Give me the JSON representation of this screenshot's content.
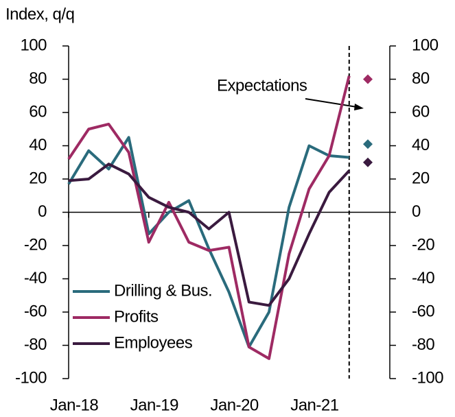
{
  "chart_data": {
    "type": "line",
    "axis_label": "Index, q/q",
    "annotation": "Expectations",
    "categories": [
      "Jan-18",
      null,
      null,
      null,
      "Jan-19",
      null,
      null,
      null,
      "Jan-20",
      null,
      null,
      null,
      "Jan-21",
      null,
      null
    ],
    "series": [
      {
        "name": "Drilling & Bus.",
        "color": "#2a6b7c",
        "values": [
          17,
          37,
          26,
          45,
          -13,
          0,
          7,
          -22,
          -48,
          -81,
          -60,
          3,
          40,
          34,
          33
        ],
        "expectation": 41
      },
      {
        "name": "Profits",
        "color": "#9e2a63",
        "values": [
          32,
          50,
          53,
          36,
          -18,
          6,
          -18,
          -23,
          -21,
          -81,
          -88,
          -25,
          14,
          34,
          82
        ],
        "expectation": 80
      },
      {
        "name": "Employees",
        "color": "#3a1a3f",
        "values": [
          19,
          20,
          29,
          23,
          9,
          3,
          0,
          -10,
          0,
          -54,
          -56,
          -40,
          -13,
          12,
          25
        ],
        "expectation": 30
      }
    ],
    "ylim": [
      -100,
      100
    ],
    "yticks": [
      -100,
      -80,
      -60,
      -40,
      -20,
      0,
      20,
      40,
      60,
      80,
      100
    ],
    "y2lim": [
      -100,
      100
    ],
    "y2ticks": [
      -100,
      -80,
      -60,
      -40,
      -20,
      0,
      20,
      40,
      60,
      80,
      100
    ]
  }
}
